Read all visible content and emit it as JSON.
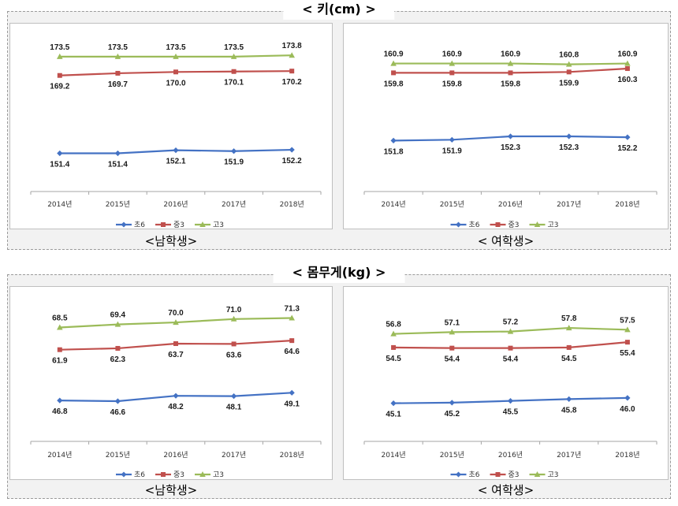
{
  "sections": [
    {
      "title": "< 키(cm) >",
      "panels": [
        {
          "caption": "<남학생>"
        },
        {
          "caption": "< 여학생>"
        }
      ]
    },
    {
      "title": "< 몸무게(kg) >",
      "panels": [
        {
          "caption": "<남학생>"
        },
        {
          "caption": "< 여학생>"
        }
      ]
    }
  ],
  "colors": {
    "초6": "#4472c4",
    "중3": "#c0504d",
    "고3": "#9bbb59"
  },
  "chart_data": [
    {
      "type": "line",
      "categories": [
        "2014년",
        "2015년",
        "2016년",
        "2017년",
        "2018년"
      ],
      "legend_position": "bottom",
      "grid": false,
      "ylim": [
        145,
        176
      ],
      "series": [
        {
          "name": "초6",
          "values": [
            151.4,
            151.4,
            152.1,
            151.9,
            152.2
          ],
          "labels": [
            "151.4",
            "151.4",
            "152.1",
            "151.9",
            "152.2"
          ]
        },
        {
          "name": "중3",
          "values": [
            169.2,
            169.7,
            170.0,
            170.1,
            170.2
          ],
          "labels": [
            "169.2",
            "169.7",
            "170.0",
            "170.1",
            "170.2"
          ]
        },
        {
          "name": "고3",
          "values": [
            173.5,
            173.5,
            173.5,
            173.5,
            173.8
          ],
          "labels": [
            "173.5",
            "173.5",
            "173.5",
            "173.5",
            "173.8"
          ]
        }
      ]
    },
    {
      "type": "line",
      "categories": [
        "2014년",
        "2015년",
        "2016년",
        "2017년",
        "2018년"
      ],
      "legend_position": "bottom",
      "grid": false,
      "ylim": [
        147,
        163
      ],
      "series": [
        {
          "name": "초6",
          "values": [
            151.8,
            151.9,
            152.3,
            152.3,
            152.2
          ],
          "labels": [
            "151.8",
            "151.9",
            "152.3",
            "152.3",
            "152.2"
          ]
        },
        {
          "name": "중3",
          "values": [
            159.8,
            159.8,
            159.8,
            159.9,
            160.3
          ],
          "labels": [
            "159.8",
            "159.8",
            "159.8",
            "159.9",
            "160.3"
          ]
        },
        {
          "name": "고3",
          "values": [
            160.9,
            160.9,
            160.9,
            160.8,
            160.9
          ],
          "labels": [
            "160.9",
            "160.9",
            "160.9",
            "160.8",
            "160.9"
          ]
        }
      ]
    },
    {
      "type": "line",
      "categories": [
        "2014년",
        "2015년",
        "2016년",
        "2017년",
        "2018년"
      ],
      "legend_position": "bottom",
      "grid": false,
      "ylim": [
        37,
        74
      ],
      "series": [
        {
          "name": "초6",
          "values": [
            46.8,
            46.6,
            48.2,
            48.1,
            49.1
          ],
          "labels": [
            "46.8",
            "46.6",
            "48.2",
            "48.1",
            "49.1"
          ]
        },
        {
          "name": "중3",
          "values": [
            61.9,
            62.3,
            63.7,
            63.6,
            64.6
          ],
          "labels": [
            "61.9",
            "62.3",
            "63.7",
            "63.6",
            "64.6"
          ]
        },
        {
          "name": "고3",
          "values": [
            68.5,
            69.4,
            70.0,
            71.0,
            71.3
          ],
          "labels": [
            "68.5",
            "69.4",
            "70.0",
            "71.0",
            "71.3"
          ]
        }
      ]
    },
    {
      "type": "line",
      "categories": [
        "2014년",
        "2015년",
        "2016년",
        "2017년",
        "2018년"
      ],
      "legend_position": "bottom",
      "grid": false,
      "ylim": [
        40,
        61
      ],
      "series": [
        {
          "name": "초6",
          "values": [
            45.1,
            45.2,
            45.5,
            45.8,
            46.0
          ],
          "labels": [
            "45.1",
            "45.2",
            "45.5",
            "45.8",
            "46.0"
          ]
        },
        {
          "name": "중3",
          "values": [
            54.5,
            54.4,
            54.4,
            54.5,
            55.4
          ],
          "labels": [
            "54.5",
            "54.4",
            "54.4",
            "54.5",
            "55.4"
          ]
        },
        {
          "name": "고3",
          "values": [
            56.8,
            57.1,
            57.2,
            57.8,
            57.5
          ],
          "labels": [
            "56.8",
            "57.1",
            "57.2",
            "57.8",
            "57.5"
          ]
        }
      ]
    }
  ]
}
